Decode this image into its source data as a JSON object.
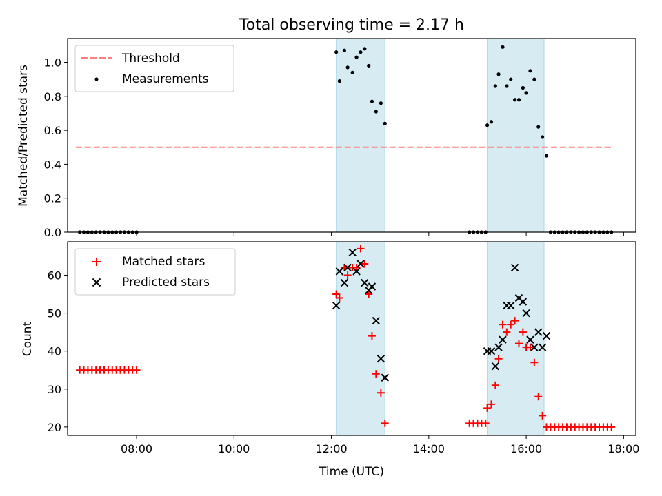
{
  "chart_data": [
    {
      "type": "scatter",
      "panel": "top",
      "title": "Total observing time = 2.17 h",
      "ylabel": "Matched/Predicted stars",
      "xlabel": "",
      "ylim": [
        0,
        1.14
      ],
      "xlim": [
        "06:35",
        "18:15"
      ],
      "yticks": [
        {
          "v": 0.0,
          "label": "0.0"
        },
        {
          "v": 0.2,
          "label": "0.2"
        },
        {
          "v": 0.4,
          "label": "0.4"
        },
        {
          "v": 0.6,
          "label": "0.6"
        },
        {
          "v": 0.8,
          "label": "0.8"
        },
        {
          "v": 1.0,
          "label": "1.0"
        }
      ],
      "grid": false,
      "legend_position": "top-left",
      "shaded_intervals": [
        [
          "12:06",
          "13:06"
        ],
        [
          "15:12",
          "16:22"
        ]
      ],
      "threshold": {
        "name": "Threshold",
        "value": 0.5,
        "x_range": [
          "06:45",
          "17:45"
        ],
        "color": "#ff7f7f",
        "style": "dashed"
      },
      "series": [
        {
          "name": "Measurements",
          "color": "#000000",
          "marker": "dot",
          "points": [
            [
              "06:50",
              0
            ],
            [
              "06:55",
              0
            ],
            [
              "07:00",
              0
            ],
            [
              "07:05",
              0
            ],
            [
              "07:10",
              0
            ],
            [
              "07:15",
              0
            ],
            [
              "07:20",
              0
            ],
            [
              "07:25",
              0
            ],
            [
              "07:30",
              0
            ],
            [
              "07:35",
              0
            ],
            [
              "07:40",
              0
            ],
            [
              "07:45",
              0
            ],
            [
              "07:50",
              0
            ],
            [
              "07:55",
              0
            ],
            [
              "08:00",
              0
            ],
            [
              "12:06",
              1.06
            ],
            [
              "12:10",
              0.89
            ],
            [
              "12:16",
              1.07
            ],
            [
              "12:20",
              0.97
            ],
            [
              "12:26",
              0.94
            ],
            [
              "12:31",
              1.03
            ],
            [
              "12:36",
              1.06
            ],
            [
              "12:41",
              1.08
            ],
            [
              "12:46",
              0.98
            ],
            [
              "12:50",
              0.77
            ],
            [
              "12:55",
              0.71
            ],
            [
              "13:01",
              0.76
            ],
            [
              "13:06",
              0.64
            ],
            [
              "14:50",
              0
            ],
            [
              "14:55",
              0
            ],
            [
              "15:00",
              0
            ],
            [
              "15:05",
              0
            ],
            [
              "15:10",
              0
            ],
            [
              "15:12",
              0.63
            ],
            [
              "15:17",
              0.65
            ],
            [
              "15:22",
              0.86
            ],
            [
              "15:26",
              0.93
            ],
            [
              "15:31",
              1.09
            ],
            [
              "15:36",
              0.86
            ],
            [
              "15:41",
              0.9
            ],
            [
              "15:46",
              0.78
            ],
            [
              "15:51",
              0.78
            ],
            [
              "15:56",
              0.85
            ],
            [
              "16:00",
              0.82
            ],
            [
              "16:05",
              0.95
            ],
            [
              "16:10",
              0.9
            ],
            [
              "16:15",
              0.62
            ],
            [
              "16:20",
              0.56
            ],
            [
              "16:25",
              0.45
            ],
            [
              "16:30",
              0
            ],
            [
              "16:35",
              0
            ],
            [
              "16:40",
              0
            ],
            [
              "16:45",
              0
            ],
            [
              "16:50",
              0
            ],
            [
              "16:55",
              0
            ],
            [
              "17:00",
              0
            ],
            [
              "17:05",
              0
            ],
            [
              "17:10",
              0
            ],
            [
              "17:15",
              0
            ],
            [
              "17:20",
              0
            ],
            [
              "17:25",
              0
            ],
            [
              "17:30",
              0
            ],
            [
              "17:35",
              0
            ],
            [
              "17:40",
              0
            ],
            [
              "17:45",
              0
            ]
          ]
        }
      ]
    },
    {
      "type": "scatter",
      "panel": "bottom",
      "title": "",
      "ylabel": "Count",
      "xlabel": "Time (UTC)",
      "ylim": [
        17.8,
        68.8
      ],
      "xlim": [
        "06:35",
        "18:15"
      ],
      "yticks": [
        {
          "v": 20,
          "label": "20"
        },
        {
          "v": 30,
          "label": "30"
        },
        {
          "v": 40,
          "label": "40"
        },
        {
          "v": 50,
          "label": "50"
        },
        {
          "v": 60,
          "label": "60"
        }
      ],
      "xticks": [
        "08:00",
        "10:00",
        "12:00",
        "14:00",
        "16:00",
        "18:00"
      ],
      "grid": false,
      "legend_position": "top-left",
      "shaded_intervals": [
        [
          "12:06",
          "13:06"
        ],
        [
          "15:12",
          "16:22"
        ]
      ],
      "series": [
        {
          "name": "Matched stars",
          "color": "#ff0000",
          "marker": "plus",
          "points": [
            [
              "06:50",
              35
            ],
            [
              "06:55",
              35
            ],
            [
              "07:00",
              35
            ],
            [
              "07:05",
              35
            ],
            [
              "07:10",
              35
            ],
            [
              "07:15",
              35
            ],
            [
              "07:20",
              35
            ],
            [
              "07:25",
              35
            ],
            [
              "07:30",
              35
            ],
            [
              "07:35",
              35
            ],
            [
              "07:40",
              35
            ],
            [
              "07:45",
              35
            ],
            [
              "07:50",
              35
            ],
            [
              "07:55",
              35
            ],
            [
              "08:00",
              35
            ],
            [
              "12:06",
              55
            ],
            [
              "12:10",
              54
            ],
            [
              "12:16",
              62
            ],
            [
              "12:20",
              60
            ],
            [
              "12:26",
              62
            ],
            [
              "12:31",
              62
            ],
            [
              "12:36",
              67
            ],
            [
              "12:41",
              63
            ],
            [
              "12:46",
              55
            ],
            [
              "12:50",
              44
            ],
            [
              "12:55",
              34
            ],
            [
              "13:01",
              29
            ],
            [
              "13:06",
              21
            ],
            [
              "14:50",
              21
            ],
            [
              "14:55",
              21
            ],
            [
              "15:00",
              21
            ],
            [
              "15:05",
              21
            ],
            [
              "15:10",
              21
            ],
            [
              "15:12",
              25
            ],
            [
              "15:17",
              26
            ],
            [
              "15:22",
              31
            ],
            [
              "15:26",
              38
            ],
            [
              "15:31",
              47
            ],
            [
              "15:36",
              45
            ],
            [
              "15:41",
              47
            ],
            [
              "15:46",
              48
            ],
            [
              "15:51",
              42
            ],
            [
              "15:56",
              45
            ],
            [
              "16:00",
              41
            ],
            [
              "16:05",
              41
            ],
            [
              "16:10",
              37
            ],
            [
              "16:15",
              28
            ],
            [
              "16:20",
              23
            ],
            [
              "16:25",
              20
            ],
            [
              "16:30",
              20
            ],
            [
              "16:35",
              20
            ],
            [
              "16:40",
              20
            ],
            [
              "16:45",
              20
            ],
            [
              "16:50",
              20
            ],
            [
              "16:55",
              20
            ],
            [
              "17:00",
              20
            ],
            [
              "17:05",
              20
            ],
            [
              "17:10",
              20
            ],
            [
              "17:15",
              20
            ],
            [
              "17:20",
              20
            ],
            [
              "17:25",
              20
            ],
            [
              "17:30",
              20
            ],
            [
              "17:35",
              20
            ],
            [
              "17:40",
              20
            ],
            [
              "17:45",
              20
            ]
          ]
        },
        {
          "name": "Predicted stars",
          "color": "#000000",
          "marker": "x",
          "points": [
            [
              "12:06",
              52
            ],
            [
              "12:10",
              61
            ],
            [
              "12:16",
              58
            ],
            [
              "12:20",
              62
            ],
            [
              "12:26",
              66
            ],
            [
              "12:31",
              61
            ],
            [
              "12:36",
              63
            ],
            [
              "12:41",
              58
            ],
            [
              "12:46",
              56
            ],
            [
              "12:50",
              57
            ],
            [
              "12:55",
              48
            ],
            [
              "13:01",
              38
            ],
            [
              "13:06",
              33
            ],
            [
              "15:12",
              40
            ],
            [
              "15:17",
              40
            ],
            [
              "15:22",
              36
            ],
            [
              "15:26",
              41
            ],
            [
              "15:31",
              43
            ],
            [
              "15:36",
              52
            ],
            [
              "15:41",
              52
            ],
            [
              "15:46",
              62
            ],
            [
              "15:51",
              54
            ],
            [
              "15:56",
              53
            ],
            [
              "16:00",
              50
            ],
            [
              "16:05",
              43
            ],
            [
              "16:10",
              41
            ],
            [
              "16:15",
              45
            ],
            [
              "16:20",
              41
            ],
            [
              "16:25",
              44
            ]
          ]
        }
      ]
    }
  ]
}
